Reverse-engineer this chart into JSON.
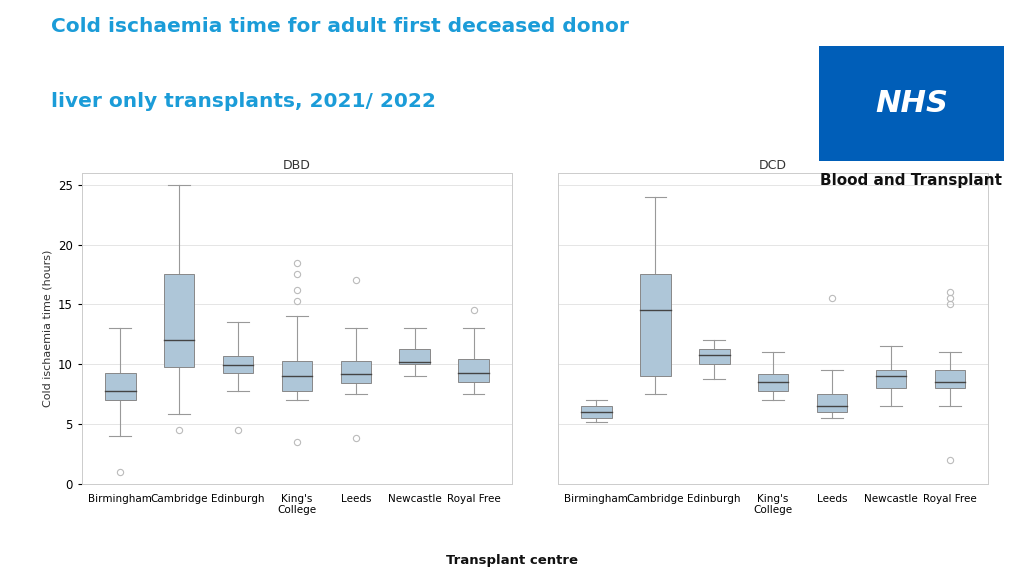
{
  "title_line1": "Cold ischaemia time for adult first deceased donor",
  "title_line2": "liver only transplants, 2021/ 2022",
  "title_color": "#1B9CD8",
  "ylabel": "Cold ischaemia time (hours)",
  "xlabel": "Transplant centre",
  "background_color": "#ffffff",
  "panel_bg": "#ffffff",
  "box_color": "#aec6d8",
  "median_color": "#444444",
  "whisker_color": "#999999",
  "outlier_color": "#bbbbbb",
  "nhs_blue": "#005EB8",
  "ylim": [
    0,
    26
  ],
  "yticks": [
    0,
    5,
    10,
    15,
    20,
    25
  ],
  "centers": [
    "Birmingham",
    "Cambridge",
    "Edinburgh",
    "King's\nCollege",
    "Leeds",
    "Newcastle",
    "Royal Free"
  ],
  "DBD": {
    "title": "DBD",
    "boxes": [
      {
        "q1": 7.0,
        "median": 7.8,
        "q3": 9.3,
        "whislo": 4.0,
        "whishi": 13.0,
        "fliers": [
          1.0
        ]
      },
      {
        "q1": 9.8,
        "median": 12.0,
        "q3": 17.5,
        "whislo": 5.8,
        "whishi": 25.0,
        "fliers": [
          4.5
        ]
      },
      {
        "q1": 9.3,
        "median": 9.9,
        "q3": 10.7,
        "whislo": 7.8,
        "whishi": 13.5,
        "fliers": [
          4.5
        ]
      },
      {
        "q1": 7.8,
        "median": 9.0,
        "q3": 10.3,
        "whislo": 7.0,
        "whishi": 14.0,
        "fliers": [
          15.3,
          17.5,
          18.5,
          16.2,
          3.5
        ]
      },
      {
        "q1": 8.4,
        "median": 9.2,
        "q3": 10.3,
        "whislo": 7.5,
        "whishi": 13.0,
        "fliers": [
          17.0,
          3.8
        ]
      },
      {
        "q1": 10.0,
        "median": 10.2,
        "q3": 11.3,
        "whislo": 9.0,
        "whishi": 13.0,
        "fliers": []
      },
      {
        "q1": 8.5,
        "median": 9.3,
        "q3": 10.4,
        "whislo": 7.5,
        "whishi": 13.0,
        "fliers": [
          14.5
        ]
      }
    ]
  },
  "DCD": {
    "title": "DCD",
    "boxes": [
      {
        "q1": 5.5,
        "median": 6.0,
        "q3": 6.5,
        "whislo": 5.2,
        "whishi": 7.0,
        "fliers": []
      },
      {
        "q1": 9.0,
        "median": 14.5,
        "q3": 17.5,
        "whislo": 7.5,
        "whishi": 24.0,
        "fliers": []
      },
      {
        "q1": 10.0,
        "median": 10.8,
        "q3": 11.3,
        "whislo": 8.8,
        "whishi": 12.0,
        "fliers": []
      },
      {
        "q1": 7.8,
        "median": 8.5,
        "q3": 9.2,
        "whislo": 7.0,
        "whishi": 11.0,
        "fliers": []
      },
      {
        "q1": 6.0,
        "median": 6.5,
        "q3": 7.5,
        "whislo": 5.5,
        "whishi": 9.5,
        "fliers": [
          15.5
        ]
      },
      {
        "q1": 8.0,
        "median": 9.0,
        "q3": 9.5,
        "whislo": 6.5,
        "whishi": 11.5,
        "fliers": []
      },
      {
        "q1": 8.0,
        "median": 8.5,
        "q3": 9.5,
        "whislo": 6.5,
        "whishi": 11.0,
        "fliers": [
          15.0,
          15.5,
          16.0,
          2.0
        ]
      }
    ]
  }
}
